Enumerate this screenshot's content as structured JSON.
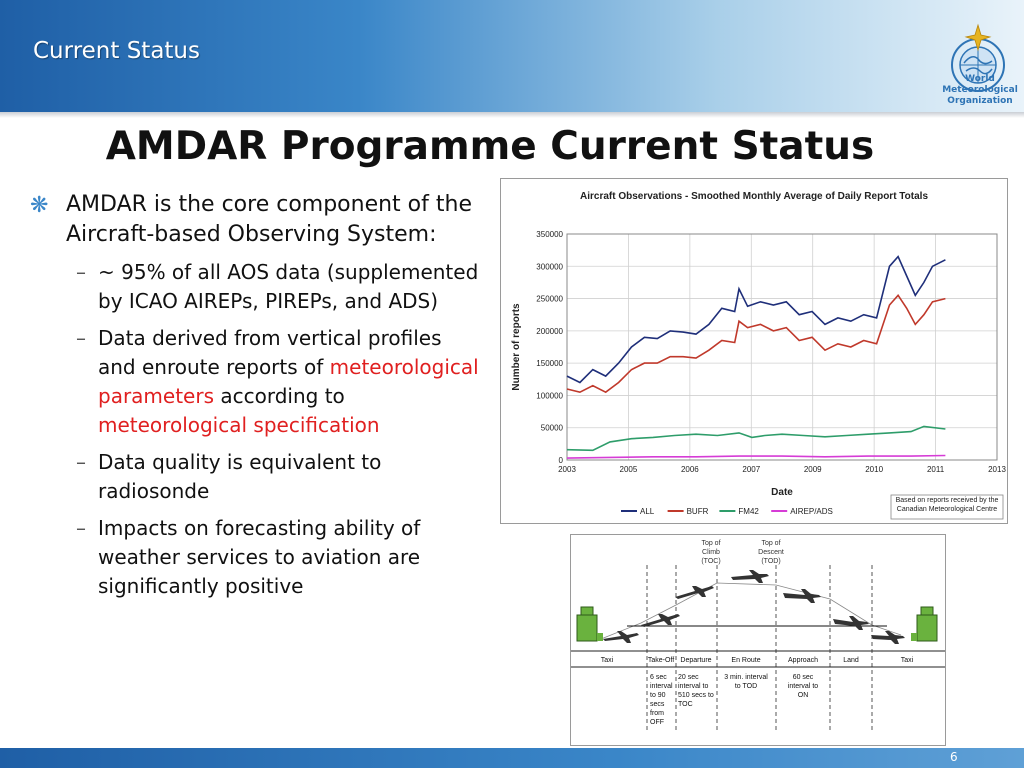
{
  "header": {
    "section_title": "Current Status"
  },
  "logo": {
    "line1": "World",
    "line2": "Meteorological",
    "line3": "Organization"
  },
  "slide": {
    "title": "AMDAR Programme Current Status",
    "page_number": "6"
  },
  "bullets": {
    "main": "AMDAR is the core component of the Aircraft-based Observing System:",
    "sub1": "~ 95% of all AOS data (supplemented by ICAO AIREPs, PIREPs, and ADS)",
    "sub2_a": "Data derived from vertical profiles and enroute reports of ",
    "sub2_red1": "meteorological parameters",
    "sub2_b": " according to ",
    "sub2_red2": "meteorological specification",
    "sub3": "Data quality is equivalent to radiosonde",
    "sub4": "Impacts on forecasting ability of weather services to aviation are significantly positive"
  },
  "chart_data": {
    "type": "line",
    "title": "Aircraft Observations - Smoothed Monthly  Average of Daily Report Totals",
    "xlabel": "Date",
    "ylabel": "Number of reports",
    "xlim": [
      2003,
      2013
    ],
    "ylim": [
      0,
      350000
    ],
    "x_ticks": [
      "2003",
      "2005",
      "2006",
      "2007",
      "2009",
      "2010",
      "2011",
      "2013"
    ],
    "y_ticks": [
      "350000",
      "300000",
      "250000",
      "200000",
      "150000",
      "100000",
      "50000",
      "0"
    ],
    "grid": true,
    "legend_position": "bottom",
    "annotation": "Based on reports received by the Canadian Meteorological Centre",
    "series": [
      {
        "name": "ALL",
        "color": "#1f2f7a",
        "x": [
          2003.0,
          2003.3,
          2003.6,
          2003.9,
          2004.2,
          2004.5,
          2004.8,
          2005.1,
          2005.4,
          2005.7,
          2006.0,
          2006.3,
          2006.6,
          2006.9,
          2007.0,
          2007.2,
          2007.5,
          2007.8,
          2008.1,
          2008.4,
          2008.7,
          2009.0,
          2009.3,
          2009.6,
          2009.9,
          2010.2,
          2010.5,
          2010.7,
          2010.9,
          2011.1,
          2011.3,
          2011.5,
          2011.8
        ],
        "y": [
          130000,
          120000,
          140000,
          130000,
          150000,
          175000,
          190000,
          188000,
          200000,
          198000,
          195000,
          210000,
          235000,
          230000,
          265000,
          238000,
          245000,
          240000,
          245000,
          225000,
          230000,
          210000,
          220000,
          215000,
          225000,
          220000,
          300000,
          315000,
          285000,
          255000,
          275000,
          300000,
          310000
        ]
      },
      {
        "name": "BUFR",
        "color": "#c0392b",
        "x": [
          2003.0,
          2003.3,
          2003.6,
          2003.9,
          2004.2,
          2004.5,
          2004.8,
          2005.1,
          2005.4,
          2005.7,
          2006.0,
          2006.3,
          2006.6,
          2006.9,
          2007.0,
          2007.2,
          2007.5,
          2007.8,
          2008.1,
          2008.4,
          2008.7,
          2009.0,
          2009.3,
          2009.6,
          2009.9,
          2010.2,
          2010.5,
          2010.7,
          2010.9,
          2011.1,
          2011.3,
          2011.5,
          2011.8
        ],
        "y": [
          110000,
          105000,
          115000,
          105000,
          120000,
          140000,
          150000,
          150000,
          160000,
          160000,
          158000,
          170000,
          185000,
          182000,
          215000,
          205000,
          210000,
          200000,
          205000,
          185000,
          190000,
          170000,
          180000,
          175000,
          185000,
          180000,
          240000,
          255000,
          235000,
          210000,
          225000,
          245000,
          250000
        ]
      },
      {
        "name": "FM42",
        "color": "#2e9d6a",
        "x": [
          2003.0,
          2003.6,
          2004.0,
          2004.5,
          2005.0,
          2005.5,
          2006.0,
          2006.5,
          2007.0,
          2007.3,
          2007.6,
          2008.0,
          2008.5,
          2009.0,
          2009.5,
          2010.0,
          2010.5,
          2011.0,
          2011.3,
          2011.8
        ],
        "y": [
          16000,
          15000,
          28000,
          33000,
          35000,
          38000,
          40000,
          38000,
          42000,
          35000,
          38000,
          40000,
          38000,
          36000,
          38000,
          40000,
          42000,
          44000,
          52000,
          48000
        ]
      },
      {
        "name": "AIREP/ADS",
        "color": "#d63cd6",
        "x": [
          2003.0,
          2004.0,
          2005.0,
          2006.0,
          2007.0,
          2008.0,
          2009.0,
          2010.0,
          2011.0,
          2011.8
        ],
        "y": [
          3000,
          4000,
          5000,
          5000,
          6000,
          6000,
          5000,
          6000,
          6000,
          7000
        ]
      }
    ]
  },
  "flight_diagram": {
    "toc_label": [
      "Top of",
      "Climb",
      "(TOC)"
    ],
    "tod_label": [
      "Top of",
      "Descent",
      "(TOD)"
    ],
    "phases": [
      "Taxi",
      "Take-Off",
      "Departure",
      "En Route",
      "Approach",
      "Land",
      "Taxi"
    ],
    "intervals": [
      [
        "6 sec",
        "interval",
        "to 90",
        "secs",
        "from",
        "OFF"
      ],
      [
        "20 sec",
        "interval to",
        "510 secs to",
        "TOC"
      ],
      [
        "3 min. interval",
        "to TOD"
      ],
      [
        "60 sec",
        "interval to",
        "ON"
      ]
    ]
  }
}
